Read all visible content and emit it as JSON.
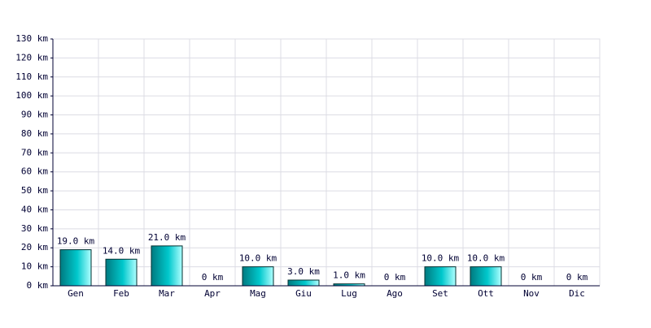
{
  "chart_data": {
    "type": "bar",
    "categories": [
      "Gen",
      "Feb",
      "Mar",
      "Apr",
      "Mag",
      "Giu",
      "Lug",
      "Ago",
      "Set",
      "Ott",
      "Nov",
      "Dic"
    ],
    "values": [
      19,
      14,
      21,
      0,
      10,
      3,
      1,
      0,
      10,
      10,
      0,
      0
    ],
    "value_labels": [
      "19.0 km",
      "14.0 km",
      "21.0 km",
      "0 km",
      "10.0 km",
      "3.0 km",
      "1.0 km",
      "0 km",
      "10.0 km",
      "10.0 km",
      "0 km",
      "0 km"
    ],
    "color": "#00c8cc",
    "ylim": [
      0,
      130
    ],
    "yticks": [
      {
        "value": 0,
        "label": "0 km"
      },
      {
        "value": 10,
        "label": "10 km"
      },
      {
        "value": 20,
        "label": "20 km"
      },
      {
        "value": 30,
        "label": "30 km"
      },
      {
        "value": 40,
        "label": "40 km"
      },
      {
        "value": 50,
        "label": "50 km"
      },
      {
        "value": 60,
        "label": "60 km"
      },
      {
        "value": 70,
        "label": "70 km"
      },
      {
        "value": 80,
        "label": "80 km"
      },
      {
        "value": 90,
        "label": "90 km"
      },
      {
        "value": 100,
        "label": "100 km"
      },
      {
        "value": 110,
        "label": "110 km"
      },
      {
        "value": 120,
        "label": "120 km"
      },
      {
        "value": 130,
        "label": "130 km"
      }
    ],
    "grid": true
  }
}
